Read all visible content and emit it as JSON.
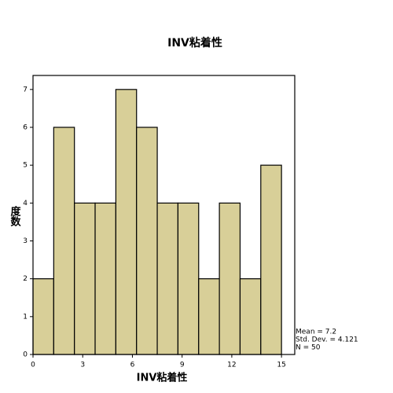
{
  "chart_data": {
    "type": "histogram",
    "title": "INV粘着性",
    "x_label": "INV粘着性",
    "y_label": "度数",
    "bins": [
      0,
      1.25,
      2.5,
      3.75,
      5,
      6.25,
      7.5,
      8.75,
      10,
      11.25,
      12.5,
      13.75,
      15
    ],
    "values": [
      2,
      6,
      4,
      4,
      7,
      6,
      4,
      4,
      2,
      4,
      2,
      5
    ],
    "color": "#d8cf98",
    "xlim": [
      0,
      15.8
    ],
    "xticks": [
      0,
      3,
      6,
      9,
      12,
      15
    ],
    "ylim": [
      0,
      7.37
    ],
    "yticks": [
      0,
      1,
      2,
      3,
      4,
      5,
      6,
      7
    ],
    "annotations": [
      "Mean = 7.2",
      "Std. Dev. = 4.121",
      "N = 50"
    ]
  }
}
